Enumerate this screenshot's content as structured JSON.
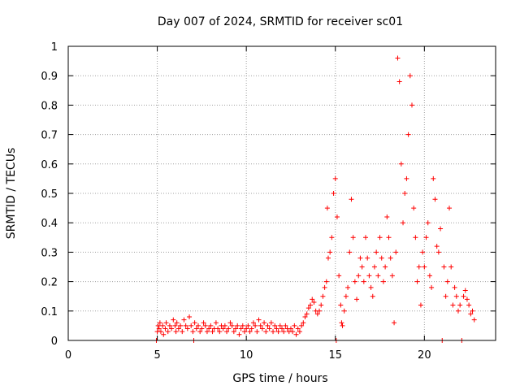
{
  "chart_data": {
    "type": "scatter",
    "title": "Day 007 of 2024, SRMTID for receiver sc01",
    "xlabel": "GPS time / hours",
    "ylabel": "SRMTID / TECUs",
    "xlim": [
      0,
      24
    ],
    "ylim": [
      0,
      1
    ],
    "x_ticks": [
      0,
      5,
      10,
      15,
      20
    ],
    "x_tick_labels": [
      "0",
      "5",
      "10",
      "15",
      "20"
    ],
    "y_ticks": [
      0,
      0.1,
      0.2,
      0.3,
      0.4,
      0.5,
      0.6,
      0.7,
      0.8,
      0.9,
      1
    ],
    "y_tick_labels": [
      "0",
      "0.1",
      "0.2",
      "0.3",
      "0.4",
      "0.5",
      "0.6",
      "0.7",
      "0.8",
      "0.9",
      "1"
    ],
    "grid": true,
    "marker": "+",
    "color": "#ff0000",
    "series": [
      {
        "name": "sc01",
        "points": [
          [
            4.95,
            0.0
          ],
          [
            5.0,
            0.03
          ],
          [
            5.05,
            0.05
          ],
          [
            5.1,
            0.04
          ],
          [
            5.15,
            0.06
          ],
          [
            5.2,
            0.03
          ],
          [
            5.3,
            0.05
          ],
          [
            5.35,
            0.02
          ],
          [
            5.45,
            0.04
          ],
          [
            5.5,
            0.06
          ],
          [
            5.6,
            0.03
          ],
          [
            5.7,
            0.05
          ],
          [
            5.8,
            0.04
          ],
          [
            5.9,
            0.07
          ],
          [
            6.0,
            0.05
          ],
          [
            6.05,
            0.03
          ],
          [
            6.1,
            0.06
          ],
          [
            6.2,
            0.04
          ],
          [
            6.3,
            0.05
          ],
          [
            6.4,
            0.03
          ],
          [
            6.5,
            0.07
          ],
          [
            6.6,
            0.05
          ],
          [
            6.7,
            0.04
          ],
          [
            6.8,
            0.08
          ],
          [
            6.9,
            0.05
          ],
          [
            7.0,
            0.03
          ],
          [
            7.05,
            0.0
          ],
          [
            7.1,
            0.06
          ],
          [
            7.2,
            0.04
          ],
          [
            7.3,
            0.05
          ],
          [
            7.4,
            0.03
          ],
          [
            7.5,
            0.04
          ],
          [
            7.6,
            0.06
          ],
          [
            7.7,
            0.05
          ],
          [
            7.8,
            0.03
          ],
          [
            7.9,
            0.04
          ],
          [
            8.0,
            0.05
          ],
          [
            8.1,
            0.03
          ],
          [
            8.2,
            0.04
          ],
          [
            8.3,
            0.06
          ],
          [
            8.4,
            0.04
          ],
          [
            8.5,
            0.03
          ],
          [
            8.6,
            0.05
          ],
          [
            8.7,
            0.04
          ],
          [
            8.8,
            0.05
          ],
          [
            8.9,
            0.03
          ],
          [
            9.0,
            0.04
          ],
          [
            9.1,
            0.06
          ],
          [
            9.2,
            0.05
          ],
          [
            9.3,
            0.03
          ],
          [
            9.4,
            0.04
          ],
          [
            9.5,
            0.05
          ],
          [
            9.6,
            0.02
          ],
          [
            9.7,
            0.04
          ],
          [
            9.8,
            0.05
          ],
          [
            9.9,
            0.03
          ],
          [
            10.0,
            0.04
          ],
          [
            10.1,
            0.05
          ],
          [
            10.2,
            0.03
          ],
          [
            10.3,
            0.04
          ],
          [
            10.4,
            0.06
          ],
          [
            10.5,
            0.05
          ],
          [
            10.6,
            0.03
          ],
          [
            10.7,
            0.07
          ],
          [
            10.8,
            0.05
          ],
          [
            10.9,
            0.04
          ],
          [
            11.0,
            0.06
          ],
          [
            11.1,
            0.03
          ],
          [
            11.2,
            0.05
          ],
          [
            11.3,
            0.04
          ],
          [
            11.4,
            0.06
          ],
          [
            11.5,
            0.03
          ],
          [
            11.6,
            0.05
          ],
          [
            11.7,
            0.04
          ],
          [
            11.8,
            0.03
          ],
          [
            11.9,
            0.05
          ],
          [
            12.0,
            0.04
          ],
          [
            12.1,
            0.03
          ],
          [
            12.2,
            0.05
          ],
          [
            12.3,
            0.04
          ],
          [
            12.4,
            0.03
          ],
          [
            12.5,
            0.04
          ],
          [
            12.6,
            0.03
          ],
          [
            12.7,
            0.05
          ],
          [
            12.8,
            0.02
          ],
          [
            12.9,
            0.04
          ],
          [
            13.0,
            0.03
          ],
          [
            13.1,
            0.05
          ],
          [
            13.2,
            0.06
          ],
          [
            13.3,
            0.08
          ],
          [
            13.4,
            0.09
          ],
          [
            13.5,
            0.11
          ],
          [
            13.6,
            0.12
          ],
          [
            13.7,
            0.14
          ],
          [
            13.8,
            0.13
          ],
          [
            13.9,
            0.1
          ],
          [
            14.0,
            0.09
          ],
          [
            14.1,
            0.1
          ],
          [
            14.2,
            0.12
          ],
          [
            14.3,
            0.15
          ],
          [
            14.4,
            0.18
          ],
          [
            14.5,
            0.2
          ],
          [
            14.55,
            0.45
          ],
          [
            14.6,
            0.28
          ],
          [
            14.7,
            0.3
          ],
          [
            14.8,
            0.35
          ],
          [
            14.9,
            0.5
          ],
          [
            15.0,
            0.55
          ],
          [
            15.05,
            0.0
          ],
          [
            15.1,
            0.42
          ],
          [
            15.2,
            0.22
          ],
          [
            15.3,
            0.12
          ],
          [
            15.35,
            0.06
          ],
          [
            15.4,
            0.05
          ],
          [
            15.5,
            0.1
          ],
          [
            15.6,
            0.15
          ],
          [
            15.7,
            0.18
          ],
          [
            15.8,
            0.3
          ],
          [
            15.9,
            0.48
          ],
          [
            16.0,
            0.35
          ],
          [
            16.1,
            0.2
          ],
          [
            16.2,
            0.14
          ],
          [
            16.3,
            0.22
          ],
          [
            16.4,
            0.28
          ],
          [
            16.5,
            0.25
          ],
          [
            16.6,
            0.2
          ],
          [
            16.7,
            0.35
          ],
          [
            16.8,
            0.28
          ],
          [
            16.9,
            0.22
          ],
          [
            17.0,
            0.18
          ],
          [
            17.1,
            0.15
          ],
          [
            17.2,
            0.25
          ],
          [
            17.3,
            0.3
          ],
          [
            17.4,
            0.22
          ],
          [
            17.5,
            0.35
          ],
          [
            17.6,
            0.28
          ],
          [
            17.7,
            0.2
          ],
          [
            17.8,
            0.25
          ],
          [
            17.9,
            0.42
          ],
          [
            18.0,
            0.35
          ],
          [
            18.1,
            0.28
          ],
          [
            18.2,
            0.22
          ],
          [
            18.3,
            0.06
          ],
          [
            18.4,
            0.3
          ],
          [
            18.5,
            0.96
          ],
          [
            18.6,
            0.88
          ],
          [
            18.7,
            0.6
          ],
          [
            18.8,
            0.4
          ],
          [
            18.9,
            0.5
          ],
          [
            19.0,
            0.55
          ],
          [
            19.1,
            0.7
          ],
          [
            19.2,
            0.9
          ],
          [
            19.3,
            0.8
          ],
          [
            19.4,
            0.45
          ],
          [
            19.5,
            0.35
          ],
          [
            19.6,
            0.2
          ],
          [
            19.7,
            0.25
          ],
          [
            19.8,
            0.12
          ],
          [
            19.9,
            0.3
          ],
          [
            20.0,
            0.25
          ],
          [
            20.1,
            0.35
          ],
          [
            20.2,
            0.4
          ],
          [
            20.3,
            0.22
          ],
          [
            20.4,
            0.18
          ],
          [
            20.5,
            0.55
          ],
          [
            20.6,
            0.48
          ],
          [
            20.7,
            0.32
          ],
          [
            20.8,
            0.3
          ],
          [
            20.9,
            0.38
          ],
          [
            21.0,
            0.0
          ],
          [
            21.1,
            0.25
          ],
          [
            21.2,
            0.15
          ],
          [
            21.3,
            0.2
          ],
          [
            21.4,
            0.45
          ],
          [
            21.5,
            0.25
          ],
          [
            21.6,
            0.12
          ],
          [
            21.7,
            0.18
          ],
          [
            21.8,
            0.15
          ],
          [
            21.9,
            0.1
          ],
          [
            22.0,
            0.12
          ],
          [
            22.1,
            0.0
          ],
          [
            22.2,
            0.15
          ],
          [
            22.3,
            0.17
          ],
          [
            22.4,
            0.14
          ],
          [
            22.5,
            0.12
          ],
          [
            22.6,
            0.09
          ],
          [
            22.7,
            0.1
          ],
          [
            22.8,
            0.07
          ]
        ]
      }
    ]
  }
}
